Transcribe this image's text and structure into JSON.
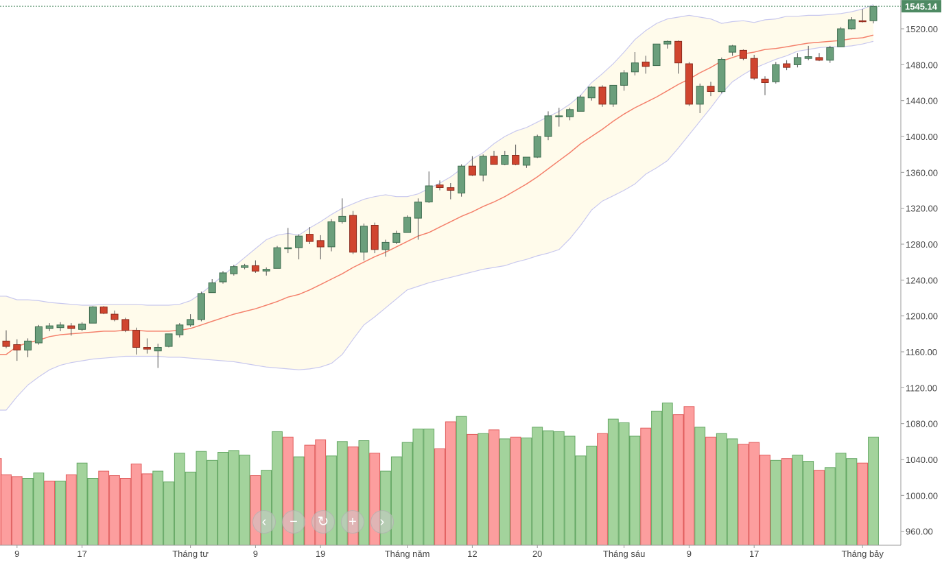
{
  "chart_data": {
    "type": "candlestick",
    "title": "",
    "xlabel": "",
    "ylabel": "",
    "ylim": [
      945,
      1552
    ],
    "yticks": [
      "1520.00",
      "1480.00",
      "1440.00",
      "1400.00",
      "1360.00",
      "1320.00",
      "1280.00",
      "1240.00",
      "1200.00",
      "1160.00",
      "1120.00",
      "1080.00",
      "1040.00",
      "1000.00",
      "960.00"
    ],
    "last_price": "1545.14",
    "x_tick_labels": [
      {
        "i": 1,
        "label": "9"
      },
      {
        "i": 7,
        "label": "17"
      },
      {
        "i": 17,
        "label": "Tháng tư"
      },
      {
        "i": 23,
        "label": "9"
      },
      {
        "i": 29,
        "label": "19"
      },
      {
        "i": 37,
        "label": "Tháng năm"
      },
      {
        "i": 43,
        "label": "12"
      },
      {
        "i": 49,
        "label": "20"
      },
      {
        "i": 57,
        "label": "Tháng sáu"
      },
      {
        "i": 63,
        "label": "9"
      },
      {
        "i": 69,
        "label": "17"
      },
      {
        "i": 79,
        "label": "Tháng bảy"
      }
    ],
    "candles": [
      [
        1172,
        1184,
        1164,
        1166
      ],
      [
        1168,
        1174,
        1150,
        1162
      ],
      [
        1162,
        1175,
        1154,
        1172
      ],
      [
        1170,
        1190,
        1168,
        1188
      ],
      [
        1186,
        1192,
        1183,
        1189
      ],
      [
        1187,
        1193,
        1183,
        1190
      ],
      [
        1189,
        1192,
        1178,
        1186
      ],
      [
        1185,
        1193,
        1183,
        1191
      ],
      [
        1192,
        1211,
        1192,
        1210
      ],
      [
        1210,
        1211,
        1202,
        1203
      ],
      [
        1202,
        1206,
        1194,
        1196
      ],
      [
        1196,
        1198,
        1182,
        1184
      ],
      [
        1184,
        1187,
        1157,
        1165
      ],
      [
        1165,
        1175,
        1158,
        1163
      ],
      [
        1161,
        1169,
        1142,
        1165
      ],
      [
        1166,
        1178,
        1165,
        1180
      ],
      [
        1179,
        1192,
        1176,
        1190
      ],
      [
        1190,
        1202,
        1188,
        1196
      ],
      [
        1196,
        1227,
        1194,
        1225
      ],
      [
        1226,
        1241,
        1226,
        1237
      ],
      [
        1238,
        1250,
        1236,
        1248
      ],
      [
        1247,
        1257,
        1245,
        1255
      ],
      [
        1254,
        1258,
        1252,
        1256
      ],
      [
        1256,
        1262,
        1248,
        1250
      ],
      [
        1250,
        1254,
        1245,
        1252
      ],
      [
        1253,
        1278,
        1253,
        1276
      ],
      [
        1276,
        1298,
        1270,
        1276
      ],
      [
        1276,
        1291,
        1263,
        1289
      ],
      [
        1291,
        1299,
        1280,
        1283
      ],
      [
        1284,
        1290,
        1263,
        1277
      ],
      [
        1277,
        1308,
        1272,
        1305
      ],
      [
        1305,
        1331,
        1303,
        1311
      ],
      [
        1312,
        1317,
        1269,
        1271
      ],
      [
        1271,
        1303,
        1262,
        1300
      ],
      [
        1301,
        1304,
        1270,
        1274
      ],
      [
        1274,
        1285,
        1266,
        1282
      ],
      [
        1282,
        1295,
        1280,
        1292
      ],
      [
        1293,
        1312,
        1293,
        1310
      ],
      [
        1309,
        1331,
        1285,
        1327
      ],
      [
        1327,
        1361,
        1326,
        1345
      ],
      [
        1346,
        1351,
        1340,
        1343
      ],
      [
        1343,
        1348,
        1330,
        1340
      ],
      [
        1337,
        1369,
        1333,
        1367
      ],
      [
        1367,
        1378,
        1356,
        1357
      ],
      [
        1357,
        1380,
        1350,
        1378
      ],
      [
        1378,
        1384,
        1370,
        1369
      ],
      [
        1369,
        1384,
        1368,
        1379
      ],
      [
        1379,
        1391,
        1368,
        1369
      ],
      [
        1368,
        1376,
        1365,
        1377
      ],
      [
        1377,
        1402,
        1376,
        1400
      ],
      [
        1400,
        1428,
        1396,
        1423
      ],
      [
        1423,
        1432,
        1411,
        1423
      ],
      [
        1422,
        1432,
        1418,
        1430
      ],
      [
        1428,
        1446,
        1428,
        1444
      ],
      [
        1443,
        1456,
        1440,
        1455
      ],
      [
        1455,
        1457,
        1433,
        1436
      ],
      [
        1436,
        1457,
        1433,
        1457
      ],
      [
        1457,
        1474,
        1451,
        1471
      ],
      [
        1472,
        1494,
        1468,
        1482
      ],
      [
        1483,
        1490,
        1470,
        1478
      ],
      [
        1479,
        1503,
        1479,
        1503
      ],
      [
        1503,
        1507,
        1498,
        1506
      ],
      [
        1506,
        1507,
        1470,
        1482
      ],
      [
        1481,
        1483,
        1434,
        1436
      ],
      [
        1436,
        1459,
        1426,
        1456
      ],
      [
        1456,
        1461,
        1445,
        1450
      ],
      [
        1450,
        1488,
        1448,
        1486
      ],
      [
        1494,
        1502,
        1490,
        1501
      ],
      [
        1496,
        1497,
        1485,
        1487
      ],
      [
        1487,
        1491,
        1463,
        1465
      ],
      [
        1464,
        1467,
        1446,
        1460
      ],
      [
        1461,
        1483,
        1459,
        1480
      ],
      [
        1481,
        1485,
        1474,
        1477
      ],
      [
        1480,
        1493,
        1477,
        1488
      ],
      [
        1487,
        1501,
        1485,
        1489
      ],
      [
        1488,
        1493,
        1484,
        1485
      ],
      [
        1485,
        1501,
        1482,
        1499
      ],
      [
        1500,
        1522,
        1500,
        1520
      ],
      [
        1520,
        1533,
        1519,
        1530
      ],
      [
        1529,
        1542,
        1527,
        1528
      ],
      [
        1529,
        1546,
        1526,
        1545
      ]
    ],
    "bollinger_mid": [
      1157,
      1166,
      1170,
      1173,
      1177,
      1179,
      1180,
      1181,
      1182,
      1183,
      1183,
      1184,
      1184,
      1183,
      1183,
      1183,
      1184,
      1186,
      1190,
      1194,
      1198,
      1202,
      1205,
      1208,
      1212,
      1216,
      1221,
      1224,
      1229,
      1235,
      1241,
      1247,
      1254,
      1260,
      1266,
      1271,
      1277,
      1283,
      1289,
      1293,
      1299,
      1305,
      1311,
      1316,
      1322,
      1327,
      1333,
      1340,
      1347,
      1355,
      1364,
      1373,
      1382,
      1392,
      1400,
      1408,
      1417,
      1425,
      1432,
      1438,
      1444,
      1451,
      1458,
      1464,
      1471,
      1477,
      1484,
      1488,
      1492,
      1494,
      1497,
      1498,
      1500,
      1502,
      1504,
      1505,
      1506,
      1507,
      1509,
      1510,
      1513
    ],
    "bollinger_upper": [
      1222,
      1218,
      1218,
      1217,
      1215,
      1214,
      1213,
      1212,
      1212,
      1213,
      1213,
      1213,
      1213,
      1212,
      1212,
      1212,
      1213,
      1217,
      1225,
      1235,
      1245,
      1255,
      1265,
      1275,
      1285,
      1290,
      1292,
      1290,
      1298,
      1305,
      1313,
      1320,
      1325,
      1330,
      1333,
      1335,
      1333,
      1333,
      1336,
      1342,
      1348,
      1355,
      1364,
      1375,
      1382,
      1392,
      1400,
      1406,
      1410,
      1416,
      1422,
      1428,
      1436,
      1446,
      1460,
      1470,
      1481,
      1494,
      1508,
      1518,
      1526,
      1531,
      1533,
      1535,
      1533,
      1531,
      1526,
      1528,
      1529,
      1527,
      1530,
      1531,
      1534,
      1534,
      1535,
      1535,
      1536,
      1537,
      1539,
      1542,
      1547
    ],
    "bollinger_lower": [
      1095,
      1110,
      1123,
      1132,
      1140,
      1145,
      1148,
      1150,
      1152,
      1153,
      1154,
      1155,
      1155,
      1155,
      1155,
      1154,
      1154,
      1153,
      1152,
      1151,
      1150,
      1149,
      1147,
      1145,
      1143,
      1142,
      1141,
      1140,
      1141,
      1143,
      1147,
      1157,
      1174,
      1190,
      1199,
      1209,
      1219,
      1229,
      1233,
      1237,
      1240,
      1243,
      1246,
      1249,
      1252,
      1254,
      1256,
      1260,
      1263,
      1267,
      1270,
      1274,
      1286,
      1301,
      1318,
      1328,
      1334,
      1340,
      1347,
      1358,
      1365,
      1373,
      1387,
      1402,
      1417,
      1432,
      1448,
      1461,
      1469,
      1476,
      1481,
      1486,
      1490,
      1495,
      1497,
      1499,
      1500,
      1500,
      1501,
      1503,
      1506
    ],
    "volume": [
      {
        "v": 1023,
        "dir": "down"
      },
      {
        "v": 1021,
        "dir": "down"
      },
      {
        "v": 1019,
        "dir": "up"
      },
      {
        "v": 1025,
        "dir": "up"
      },
      {
        "v": 1016,
        "dir": "down"
      },
      {
        "v": 1016,
        "dir": "up"
      },
      {
        "v": 1023,
        "dir": "down"
      },
      {
        "v": 1036,
        "dir": "up"
      },
      {
        "v": 1019,
        "dir": "up"
      },
      {
        "v": 1027,
        "dir": "down"
      },
      {
        "v": 1022,
        "dir": "down"
      },
      {
        "v": 1019,
        "dir": "down"
      },
      {
        "v": 1035,
        "dir": "down"
      },
      {
        "v": 1024,
        "dir": "down"
      },
      {
        "v": 1027,
        "dir": "up"
      },
      {
        "v": 1015,
        "dir": "up"
      },
      {
        "v": 1047,
        "dir": "up"
      },
      {
        "v": 1026,
        "dir": "up"
      },
      {
        "v": 1049,
        "dir": "up"
      },
      {
        "v": 1039,
        "dir": "up"
      },
      {
        "v": 1048,
        "dir": "up"
      },
      {
        "v": 1050,
        "dir": "up"
      },
      {
        "v": 1045,
        "dir": "up"
      },
      {
        "v": 1022,
        "dir": "down"
      },
      {
        "v": 1028,
        "dir": "up"
      },
      {
        "v": 1071,
        "dir": "up"
      },
      {
        "v": 1065,
        "dir": "down"
      },
      {
        "v": 1043,
        "dir": "up"
      },
      {
        "v": 1056,
        "dir": "down"
      },
      {
        "v": 1062,
        "dir": "down"
      },
      {
        "v": 1044,
        "dir": "up"
      },
      {
        "v": 1060,
        "dir": "up"
      },
      {
        "v": 1054,
        "dir": "down"
      },
      {
        "v": 1061,
        "dir": "up"
      },
      {
        "v": 1047,
        "dir": "down"
      },
      {
        "v": 1027,
        "dir": "up"
      },
      {
        "v": 1043,
        "dir": "up"
      },
      {
        "v": 1059,
        "dir": "up"
      },
      {
        "v": 1074,
        "dir": "up"
      },
      {
        "v": 1074,
        "dir": "up"
      },
      {
        "v": 1052,
        "dir": "down"
      },
      {
        "v": 1082,
        "dir": "down"
      },
      {
        "v": 1088,
        "dir": "up"
      },
      {
        "v": 1068,
        "dir": "down"
      },
      {
        "v": 1069,
        "dir": "up"
      },
      {
        "v": 1073,
        "dir": "down"
      },
      {
        "v": 1063,
        "dir": "up"
      },
      {
        "v": 1065,
        "dir": "down"
      },
      {
        "v": 1064,
        "dir": "up"
      },
      {
        "v": 1076,
        "dir": "up"
      },
      {
        "v": 1072,
        "dir": "up"
      },
      {
        "v": 1071,
        "dir": "up"
      },
      {
        "v": 1066,
        "dir": "up"
      },
      {
        "v": 1044,
        "dir": "up"
      },
      {
        "v": 1055,
        "dir": "up"
      },
      {
        "v": 1069,
        "dir": "down"
      },
      {
        "v": 1085,
        "dir": "up"
      },
      {
        "v": 1081,
        "dir": "up"
      },
      {
        "v": 1066,
        "dir": "up"
      },
      {
        "v": 1075,
        "dir": "down"
      },
      {
        "v": 1094,
        "dir": "up"
      },
      {
        "v": 1103,
        "dir": "up"
      },
      {
        "v": 1090,
        "dir": "down"
      },
      {
        "v": 1099,
        "dir": "down"
      },
      {
        "v": 1076,
        "dir": "up"
      },
      {
        "v": 1065,
        "dir": "down"
      },
      {
        "v": 1069,
        "dir": "up"
      },
      {
        "v": 1063,
        "dir": "up"
      },
      {
        "v": 1057,
        "dir": "down"
      },
      {
        "v": 1059,
        "dir": "down"
      },
      {
        "v": 1045,
        "dir": "down"
      },
      {
        "v": 1039,
        "dir": "up"
      },
      {
        "v": 1041,
        "dir": "down"
      },
      {
        "v": 1045,
        "dir": "up"
      },
      {
        "v": 1038,
        "dir": "up"
      },
      {
        "v": 1028,
        "dir": "down"
      },
      {
        "v": 1031,
        "dir": "up"
      },
      {
        "v": 1047,
        "dir": "up"
      },
      {
        "v": 1041,
        "dir": "up"
      },
      {
        "v": 1036,
        "dir": "down"
      },
      {
        "v": 1065,
        "dir": "up"
      }
    ]
  },
  "colors": {
    "up_body": "#6b9f7c",
    "up_edge": "#3d6b4e",
    "down_body": "#d0452f",
    "down_edge": "#8a2a1c",
    "vol_up": "#a3d39c",
    "vol_up_edge": "#63a763",
    "vol_down": "#fc9e9e",
    "vol_down_edge": "#e05c5c",
    "band_fill": "#fffbeb",
    "band_line": "#c8c8ee",
    "mid_line": "#f4806b",
    "price_tag": "#4e8a63"
  },
  "nav": {
    "left_glyph": "‹",
    "minus_glyph": "−",
    "reset_glyph": "↻",
    "plus_glyph": "+",
    "right_glyph": "›"
  }
}
